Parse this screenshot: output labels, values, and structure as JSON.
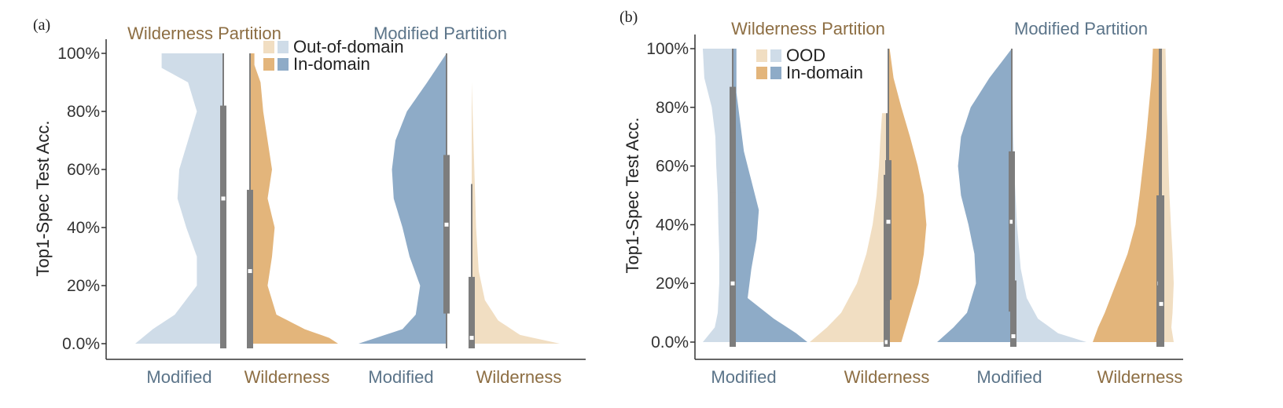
{
  "colors": {
    "modified_in": "#8eabc7",
    "modified_ood": "#cfdce8",
    "wild_in": "#e3b57b",
    "wild_ood": "#f1dec2",
    "box": "#7d7d7d",
    "axis": "#333333",
    "title_wild": "#8d6e43",
    "title_mod": "#5b7489"
  },
  "chart_data": [
    {
      "type": "violin",
      "panel": "(a)",
      "ylabel": "Top1-Spec Test Acc.",
      "ylim": [
        0,
        100
      ],
      "yticks": [
        0,
        20,
        40,
        60,
        80,
        100
      ],
      "ytick_labels": [
        "0.0%",
        "20%",
        "40%",
        "60%",
        "80%",
        "100%"
      ],
      "partitions": [
        "Wilderness Partition",
        "Modified Partition"
      ],
      "legend": {
        "ood": "Out-of-domain",
        "in": "In-domain"
      },
      "categories": [
        "Modified",
        "Wilderness",
        "Modified",
        "Wilderness"
      ],
      "violins": [
        {
          "category": "Modified",
          "partition": "Wilderness Partition",
          "domain": "ood",
          "side": "left",
          "median": 50,
          "q1": 0,
          "q3": 82,
          "wmin": 0,
          "wmax": 100,
          "density_y": [
            0,
            5,
            10,
            20,
            30,
            40,
            50,
            60,
            70,
            80,
            90,
            95,
            100
          ],
          "density_w": [
            1.0,
            0.8,
            0.55,
            0.3,
            0.3,
            0.42,
            0.52,
            0.5,
            0.4,
            0.3,
            0.4,
            0.7,
            0.7
          ]
        },
        {
          "category": "Wilderness",
          "partition": "Wilderness Partition",
          "domain": "in",
          "side": "right",
          "median": 25,
          "q1": 0,
          "q3": 53,
          "wmin": 0,
          "wmax": 100,
          "density_y": [
            0,
            2,
            5,
            10,
            20,
            30,
            40,
            50,
            60,
            70,
            80,
            90,
            96,
            100
          ],
          "density_w": [
            1.0,
            0.9,
            0.62,
            0.3,
            0.2,
            0.25,
            0.28,
            0.2,
            0.25,
            0.2,
            0.15,
            0.12,
            0.05,
            0.05
          ]
        },
        {
          "category": "Modified",
          "partition": "Modified Partition",
          "domain": "in",
          "side": "left",
          "median": 41,
          "q1": 12,
          "q3": 65,
          "wmin": 0,
          "wmax": 100,
          "density_y": [
            0,
            5,
            10,
            20,
            30,
            40,
            50,
            60,
            70,
            80,
            90,
            100
          ],
          "density_w": [
            1.0,
            0.5,
            0.35,
            0.3,
            0.42,
            0.5,
            0.6,
            0.62,
            0.58,
            0.45,
            0.22,
            0.0
          ]
        },
        {
          "category": "Wilderness",
          "partition": "Modified Partition",
          "domain": "ood",
          "side": "right",
          "median": 2,
          "q1": 0,
          "q3": 23,
          "wmin": 0,
          "wmax": 55,
          "density_y": [
            0,
            3,
            8,
            15,
            25,
            40,
            60,
            80,
            90
          ],
          "density_w": [
            1.0,
            0.55,
            0.3,
            0.15,
            0.08,
            0.05,
            0.03,
            0.01,
            0.0
          ]
        }
      ]
    },
    {
      "type": "violin",
      "panel": "(b)",
      "ylabel": "Top1-Spec Test Acc.",
      "ylim": [
        0,
        100
      ],
      "yticks": [
        0,
        20,
        40,
        60,
        80,
        100
      ],
      "ytick_labels": [
        "0.0%",
        "20%",
        "40%",
        "60%",
        "80%",
        "100%"
      ],
      "partitions": [
        "Wilderness Partition",
        "Modified Partition"
      ],
      "legend": {
        "ood": "OOD",
        "in": "In-domain"
      },
      "categories": [
        "Modified",
        "Wilderness",
        "Modified",
        "Wilderness"
      ],
      "violins": [
        {
          "category": "Modified",
          "partition": "Wilderness Partition",
          "domain": "ood",
          "side": "left",
          "median": 50,
          "q1": 0,
          "q3": 87,
          "wmin": 0,
          "wmax": 100,
          "density_y": [
            0,
            5,
            10,
            20,
            30,
            40,
            50,
            60,
            70,
            80,
            90,
            100
          ],
          "density_w": [
            1.0,
            0.6,
            0.5,
            0.45,
            0.45,
            0.48,
            0.5,
            0.55,
            0.58,
            0.7,
            0.95,
            1.0
          ]
        },
        {
          "category": "Modified",
          "partition": "Wilderness Partition",
          "domain": "in",
          "side": "right",
          "median": 20,
          "q1": 0,
          "q3": 51,
          "wmin": 0,
          "wmax": 100,
          "density_y": [
            0,
            3,
            8,
            15,
            25,
            35,
            45,
            55,
            65,
            75,
            85,
            100
          ],
          "density_w": [
            1.0,
            0.85,
            0.55,
            0.2,
            0.25,
            0.32,
            0.35,
            0.25,
            0.15,
            0.1,
            0.05,
            0.05
          ]
        },
        {
          "category": "Wilderness",
          "partition": "Wilderness Partition",
          "domain": "ood",
          "side": "left",
          "median": 0,
          "q1": 0,
          "q3": 57,
          "wmin": 0,
          "wmax": 78,
          "density_y": [
            0,
            5,
            10,
            20,
            30,
            40,
            50,
            60,
            70,
            78
          ],
          "density_w": [
            1.0,
            0.78,
            0.6,
            0.4,
            0.28,
            0.2,
            0.15,
            0.12,
            0.1,
            0.08
          ]
        },
        {
          "category": "Wilderness",
          "partition": "Wilderness Partition",
          "domain": "in",
          "side": "right",
          "median": 41,
          "q1": 16,
          "q3": 62,
          "wmin": 0,
          "wmax": 100,
          "density_y": [
            0,
            10,
            20,
            30,
            40,
            50,
            60,
            70,
            80,
            90,
            100
          ],
          "density_w": [
            0.3,
            0.5,
            0.7,
            0.82,
            0.88,
            0.82,
            0.68,
            0.5,
            0.3,
            0.12,
            0.03
          ]
        },
        {
          "category": "Modified",
          "partition": "Modified Partition",
          "domain": "in",
          "side": "left",
          "median": 41,
          "q1": 12,
          "q3": 65,
          "wmin": 0,
          "wmax": 100,
          "density_y": [
            0,
            5,
            10,
            20,
            30,
            40,
            50,
            60,
            70,
            80,
            90,
            100
          ],
          "density_w": [
            1.0,
            0.78,
            0.6,
            0.48,
            0.5,
            0.58,
            0.68,
            0.72,
            0.68,
            0.55,
            0.3,
            0.0
          ]
        },
        {
          "category": "Modified",
          "partition": "Modified Partition",
          "domain": "ood",
          "side": "right",
          "median": 2,
          "q1": 0,
          "q3": 21,
          "wmin": 0,
          "wmax": 52,
          "density_y": [
            0,
            3,
            8,
            15,
            25,
            40,
            55,
            70,
            85,
            95
          ],
          "density_w": [
            1.0,
            0.62,
            0.35,
            0.2,
            0.12,
            0.07,
            0.04,
            0.02,
            0.01,
            0.0
          ]
        },
        {
          "category": "Wilderness",
          "partition": "Modified Partition",
          "domain": "in",
          "side": "left",
          "median": 20,
          "q1": 0,
          "q3": 50,
          "wmin": 0,
          "wmax": 100,
          "density_y": [
            0,
            5,
            10,
            20,
            30,
            40,
            50,
            60,
            70,
            80,
            90,
            100
          ],
          "density_w": [
            1.0,
            0.92,
            0.82,
            0.65,
            0.48,
            0.36,
            0.3,
            0.25,
            0.2,
            0.16,
            0.12,
            0.1
          ]
        },
        {
          "category": "Wilderness",
          "partition": "Modified Partition",
          "domain": "ood",
          "side": "right",
          "median": 13,
          "q1": 0,
          "q3": 50,
          "wmin": 0,
          "wmax": 100,
          "density_y": [
            0,
            5,
            10,
            20,
            30,
            40,
            50,
            60,
            70,
            80,
            90,
            100
          ],
          "density_w": [
            0.6,
            0.5,
            0.55,
            0.6,
            0.55,
            0.48,
            0.42,
            0.38,
            0.35,
            0.3,
            0.28,
            0.25
          ]
        }
      ]
    }
  ]
}
